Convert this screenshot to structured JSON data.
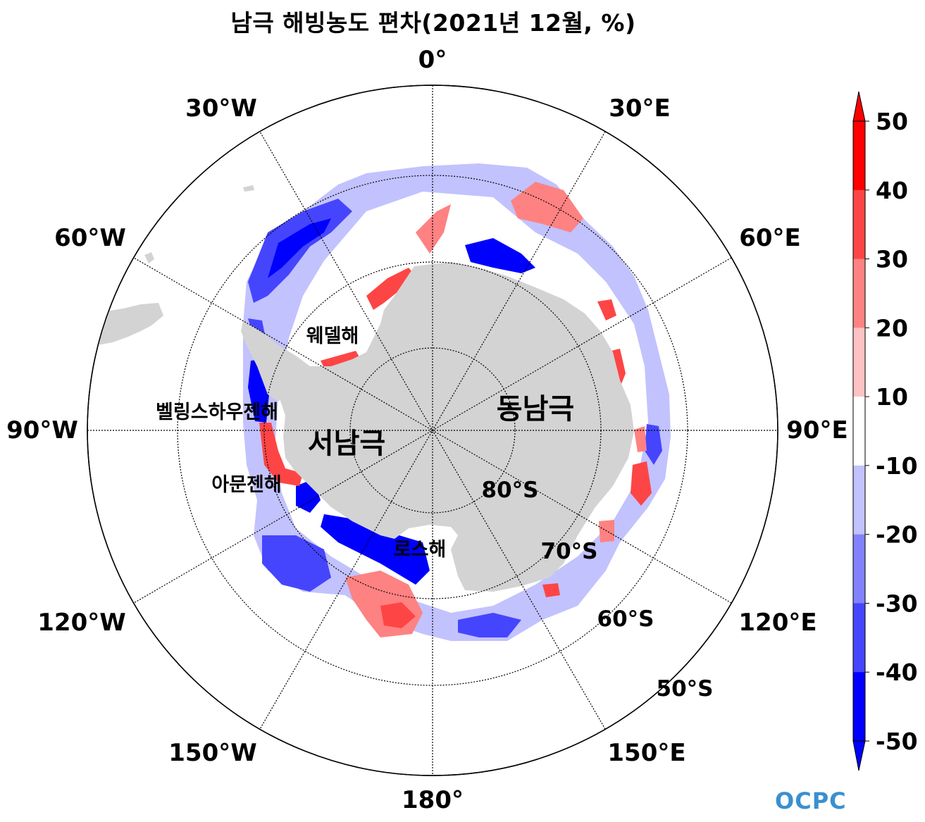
{
  "title": "남극 해빙농도 편차(2021년 12월, %)",
  "longitude_labels": [
    "0°",
    "30°E",
    "60°E",
    "90°E",
    "120°E",
    "150°E",
    "180°",
    "150°W",
    "120°W",
    "90°W",
    "60°W",
    "30°W"
  ],
  "latitude_labels": [
    "80°S",
    "70°S",
    "60°S",
    "50°S"
  ],
  "regions": {
    "east_antarctica": "동남극",
    "west_antarctica": "서남극",
    "weddell_sea": "웨델해",
    "bellingshausen_sea": "벨링스하우젠해",
    "amundsen_sea": "아문젠해",
    "ross_sea": "로스해"
  },
  "colorbar": {
    "ticks": [
      "50",
      "40",
      "30",
      "20",
      "10",
      "-10",
      "-20",
      "-30",
      "-40",
      "-50"
    ],
    "colors": [
      "#fe0000",
      "#fe4545",
      "#fe8282",
      "#fec2c2",
      "#ffffff",
      "#c2c2fe",
      "#8282fe",
      "#4545fe",
      "#0000fe"
    ],
    "extend_top_color": "#fe0000",
    "extend_bottom_color": "#0000fe"
  },
  "land_color": "#d3d3d3",
  "logo": "OCPC"
}
